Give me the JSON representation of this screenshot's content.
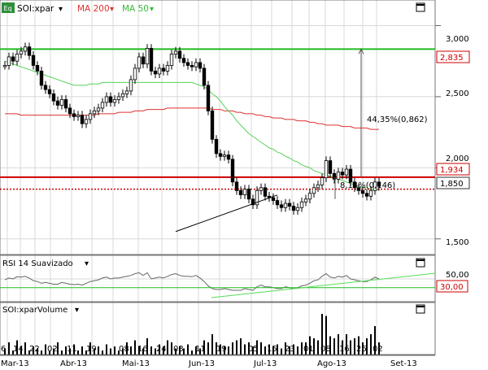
{
  "colors": {
    "background": "#ffffff",
    "grid": "#d8d8d8",
    "border": "#666666",
    "candle": "#000000",
    "ma200": "#e03030",
    "ma50": "#58d058",
    "hline_green": "#22bb22",
    "hline_red": "#cc0000",
    "trendline": "#000000",
    "rsi_line": "#666666",
    "rsi_trend": "#55dd55",
    "volume": "#000000",
    "label_red_bg": "#ffffff"
  },
  "header": {
    "badge": "Eq",
    "symbol": "SOI:xpar",
    "ma200_label": "MA 200",
    "ma50_label": "MA 50",
    "arrow_glyph": "▾"
  },
  "rsi_header": {
    "label": "RSI 14 Suavizado",
    "arrow_glyph": "▾"
  },
  "volume_header": {
    "label": "SOI:xparVolume",
    "arrow_glyph": "▾"
  },
  "window_controls": {
    "price_icon": "maximize-icon",
    "rsi_icon": "maximize-icon",
    "volume_icon": "maximize-icon"
  },
  "y_axis": {
    "ticks": [
      "3,000",
      "2,500",
      "2,000",
      "1,500"
    ]
  },
  "price_labels": {
    "green": "2,835",
    "red": "1,934",
    "last": "1,850"
  },
  "rsi_axis": {
    "ticks": [
      "50,00",
      "30,00"
    ]
  },
  "annotations": {
    "upper_measure": "44,35%(0,862)",
    "lower_measure": "8,14%(0,146)"
  },
  "x_axis": {
    "days": [
      "6",
      "14",
      "22",
      "02",
      "11",
      "19",
      "08",
      "16",
      "24",
      "03",
      "11",
      "19",
      "05",
      "15",
      "23",
      "01",
      "08",
      "16",
      "26",
      "02"
    ],
    "months": [
      "Mar-13",
      "Abr-13",
      "Mai-13",
      "Jun-13",
      "Jul-13",
      "Ago-13",
      "Set-13"
    ]
  },
  "chart_data": {
    "type": "candlestick",
    "y_axis_label_ticks": [
      3.0,
      2.5,
      2.0,
      1.5
    ],
    "ylim": [
      1.39,
      3.18
    ],
    "close": [
      2.72,
      2.78,
      2.75,
      2.8,
      2.82,
      2.85,
      2.79,
      2.72,
      2.68,
      2.58,
      2.55,
      2.52,
      2.47,
      2.44,
      2.48,
      2.42,
      2.38,
      2.36,
      2.37,
      2.31,
      2.34,
      2.38,
      2.4,
      2.42,
      2.46,
      2.5,
      2.46,
      2.48,
      2.5,
      2.52,
      2.54,
      2.62,
      2.7,
      2.78,
      2.73,
      2.84,
      2.68,
      2.66,
      2.7,
      2.68,
      2.72,
      2.8,
      2.82,
      2.77,
      2.74,
      2.72,
      2.71,
      2.74,
      2.7,
      2.58,
      2.4,
      2.2,
      2.1,
      2.08,
      2.09,
      2.06,
      1.9,
      1.84,
      1.81,
      1.85,
      1.78,
      1.74,
      1.84,
      1.86,
      1.8,
      1.79,
      1.77,
      1.74,
      1.72,
      1.75,
      1.73,
      1.7,
      1.72,
      1.76,
      1.78,
      1.82,
      1.86,
      1.88,
      1.93,
      2.05,
      1.96,
      1.92,
      1.97,
      1.95,
      1.99,
      1.9,
      1.86,
      1.84,
      1.82,
      1.8,
      1.84,
      1.9,
      1.87
    ],
    "ma200": [
      2.38,
      2.38,
      2.38,
      2.38,
      2.37,
      2.37,
      2.37,
      2.37,
      2.37,
      2.37,
      2.37,
      2.37,
      2.37,
      2.37,
      2.37,
      2.37,
      2.37,
      2.37,
      2.37,
      2.37,
      2.37,
      2.37,
      2.37,
      2.38,
      2.38,
      2.38,
      2.38,
      2.38,
      2.39,
      2.39,
      2.39,
      2.39,
      2.4,
      2.4,
      2.4,
      2.41,
      2.41,
      2.41,
      2.41,
      2.41,
      2.42,
      2.42,
      2.42,
      2.42,
      2.42,
      2.42,
      2.42,
      2.42,
      2.42,
      2.42,
      2.42,
      2.41,
      2.41,
      2.41,
      2.4,
      2.4,
      2.4,
      2.39,
      2.39,
      2.38,
      2.38,
      2.38,
      2.37,
      2.37,
      2.36,
      2.36,
      2.35,
      2.35,
      2.35,
      2.34,
      2.34,
      2.34,
      2.33,
      2.33,
      2.33,
      2.32,
      2.32,
      2.31,
      2.31,
      2.3,
      2.3,
      2.3,
      2.3,
      2.29,
      2.29,
      2.29,
      2.28,
      2.28,
      2.28,
      2.28,
      2.27,
      2.27,
      2.27
    ],
    "ma50": [
      2.75,
      2.74,
      2.73,
      2.72,
      2.71,
      2.7,
      2.69,
      2.68,
      2.67,
      2.66,
      2.65,
      2.64,
      2.63,
      2.62,
      2.61,
      2.6,
      2.59,
      2.58,
      2.58,
      2.58,
      2.58,
      2.59,
      2.59,
      2.59,
      2.6,
      2.6,
      2.6,
      2.6,
      2.6,
      2.6,
      2.6,
      2.6,
      2.6,
      2.6,
      2.6,
      2.6,
      2.6,
      2.6,
      2.6,
      2.6,
      2.6,
      2.6,
      2.6,
      2.6,
      2.6,
      2.6,
      2.6,
      2.59,
      2.58,
      2.57,
      2.55,
      2.52,
      2.5,
      2.47,
      2.43,
      2.4,
      2.37,
      2.33,
      2.3,
      2.27,
      2.24,
      2.22,
      2.2,
      2.18,
      2.16,
      2.14,
      2.13,
      2.11,
      2.1,
      2.08,
      2.07,
      2.05,
      2.04,
      2.02,
      2.01,
      2.0,
      1.98,
      1.97,
      1.96,
      1.95,
      1.94,
      1.93,
      1.92,
      1.91,
      1.9,
      1.89,
      1.88,
      1.87,
      1.86,
      1.86,
      1.85,
      1.85,
      1.84
    ],
    "rsi": [
      48,
      52,
      50,
      55,
      54,
      56,
      52,
      46,
      44,
      40,
      42,
      40,
      38,
      38,
      42,
      40,
      38,
      37,
      38,
      36,
      40,
      44,
      46,
      48,
      52,
      54,
      50,
      52,
      52,
      54,
      56,
      58,
      62,
      64,
      58,
      64,
      50,
      52,
      54,
      52,
      56,
      60,
      62,
      58,
      56,
      56,
      55,
      58,
      52,
      44,
      34,
      28,
      26,
      26,
      28,
      26,
      24,
      24,
      24,
      28,
      26,
      24,
      32,
      36,
      32,
      32,
      30,
      28,
      28,
      32,
      30,
      28,
      30,
      34,
      36,
      40,
      46,
      48,
      56,
      62,
      54,
      52,
      56,
      54,
      58,
      50,
      48,
      46,
      44,
      44,
      48,
      54,
      50
    ],
    "volume": [
      0.15,
      0.3,
      0.1,
      0.35,
      0.2,
      0.3,
      0.1,
      0.2,
      0.15,
      0.1,
      0.25,
      0.1,
      0.15,
      0.3,
      0.1,
      0.2,
      0.15,
      0.25,
      0.1,
      0.2,
      0.1,
      0.3,
      0.15,
      0.2,
      0.1,
      0.25,
      0.15,
      0.2,
      0.1,
      0.15,
      0.3,
      0.2,
      0.35,
      0.2,
      0.15,
      0.4,
      0.2,
      0.15,
      0.25,
      0.2,
      0.35,
      0.3,
      0.15,
      0.2,
      0.15,
      0.25,
      0.1,
      0.2,
      0.15,
      0.35,
      0.3,
      0.5,
      0.3,
      0.25,
      0.2,
      0.2,
      0.3,
      0.35,
      0.4,
      0.25,
      0.3,
      0.2,
      0.35,
      0.3,
      0.2,
      0.25,
      0.2,
      0.25,
      0.15,
      0.3,
      0.2,
      0.25,
      0.2,
      0.3,
      0.3,
      0.45,
      0.4,
      0.35,
      1.0,
      0.95,
      0.45,
      0.4,
      0.5,
      0.35,
      0.5,
      0.35,
      0.4,
      0.45,
      0.3,
      0.4,
      0.5,
      0.7,
      0.3
    ],
    "horizontal_lines": {
      "green": 2.835,
      "red": 1.934,
      "red_dotted": 1.85
    },
    "support_trend": [
      [
        43,
        1.62
      ],
      [
        63,
        1.78
      ]
    ],
    "rsi_levels": {
      "upper": 50,
      "lower": 30
    },
    "rsi_trend": [
      [
        33,
        16
      ],
      [
        84,
        40
      ]
    ]
  }
}
